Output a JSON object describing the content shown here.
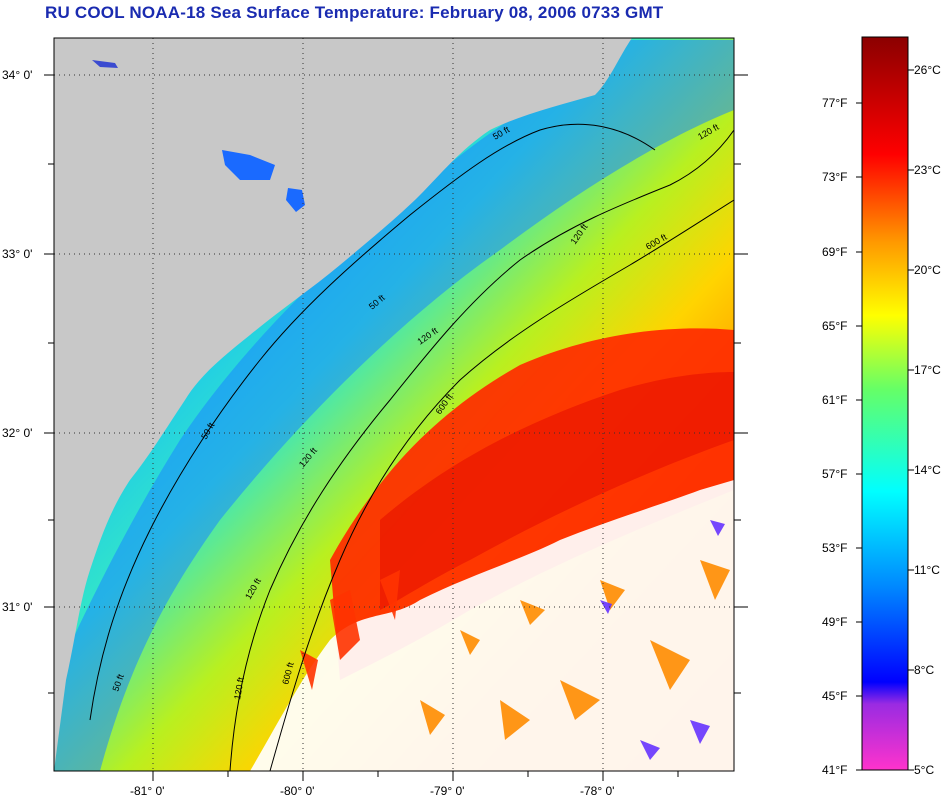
{
  "title": "RU COOL  NOAA-18  Sea Surface Temperature:  February 08, 2006 0733 GMT",
  "map": {
    "lat_labels": [
      "34° 0'",
      "33° 0'",
      "32° 0'",
      "31° 0'"
    ],
    "lon_labels": [
      "-81° 0'",
      "-80° 0'",
      "-79° 0'",
      "-78° 0'"
    ],
    "contours": [
      {
        "label": "50 ft"
      },
      {
        "label": "120 ft"
      },
      {
        "label": "600 ft"
      }
    ],
    "colors": {
      "land": "#c8c8c8",
      "cloud": "#ffffff",
      "cold": "#1e90ff",
      "warm": "#ff2a00"
    }
  },
  "colorbar": {
    "fahrenheit": [
      "77°F",
      "73°F",
      "69°F",
      "65°F",
      "61°F",
      "57°F",
      "53°F",
      "49°F",
      "45°F",
      "41°F"
    ],
    "celsius": [
      "26°C",
      "23°C",
      "20°C",
      "17°C",
      "14°C",
      "11°C",
      "8°C",
      "5°C"
    ],
    "range_f": [
      41,
      80
    ],
    "range_c": [
      5,
      27
    ]
  }
}
